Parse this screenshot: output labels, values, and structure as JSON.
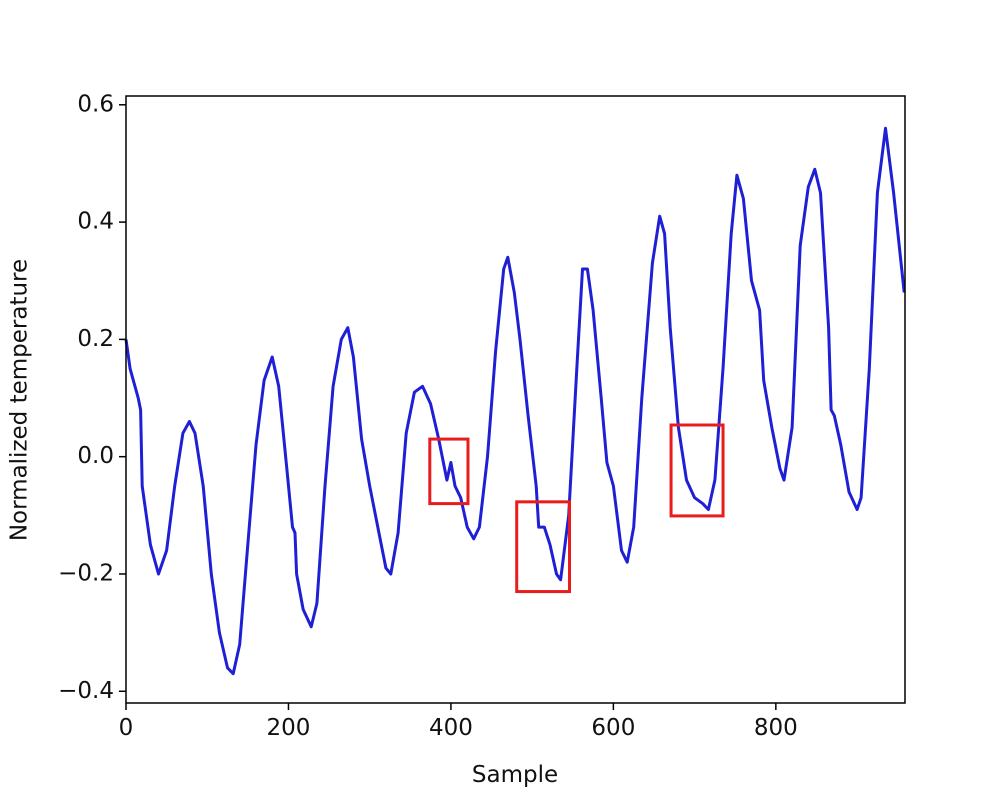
{
  "chart_data": {
    "type": "line",
    "xlabel": "Sample",
    "ylabel": "Normalized temperature",
    "xlim": [
      0,
      959
    ],
    "xticks": [
      0,
      200,
      400,
      600,
      800
    ],
    "ylim": [
      -0.42,
      0.615
    ],
    "yticks": [
      {
        "value": -0.4,
        "label": "−0.4"
      },
      {
        "value": -0.2,
        "label": "−0.2"
      },
      {
        "value": 0.0,
        "label": "0.0"
      },
      {
        "value": 0.2,
        "label": "0.2"
      },
      {
        "value": 0.4,
        "label": "0.4"
      },
      {
        "value": 0.6,
        "label": "0.6"
      }
    ],
    "grid": false,
    "series": [
      {
        "color": "#1f1fd6",
        "x": [
          0,
          5,
          15,
          18,
          20,
          30,
          40,
          50,
          60,
          70,
          78,
          85,
          95,
          105,
          115,
          125,
          132,
          140,
          150,
          160,
          170,
          180,
          188,
          198,
          205,
          208,
          210,
          218,
          228,
          235,
          245,
          255,
          265,
          273,
          280,
          290,
          300,
          310,
          320,
          326,
          335,
          345,
          355,
          365,
          375,
          385,
          395,
          400,
          405,
          412,
          420,
          428,
          435,
          445,
          455,
          465,
          470,
          478,
          485,
          495,
          505,
          508,
          515,
          522,
          530,
          535,
          545,
          555,
          562,
          568,
          575,
          585,
          592,
          600,
          610,
          617,
          625,
          635,
          648,
          657,
          663,
          670,
          680,
          690,
          700,
          710,
          717,
          725,
          735,
          745,
          752,
          760,
          770,
          780,
          785,
          795,
          805,
          810,
          820,
          830,
          840,
          848,
          855,
          865,
          868,
          872,
          880,
          890,
          900,
          905,
          915,
          925,
          935,
          945,
          958
        ],
        "values": [
          0.2,
          0.15,
          0.1,
          0.08,
          -0.05,
          -0.15,
          -0.2,
          -0.16,
          -0.05,
          0.04,
          0.06,
          0.04,
          -0.05,
          -0.2,
          -0.3,
          -0.36,
          -0.37,
          -0.32,
          -0.15,
          0.02,
          0.13,
          0.17,
          0.12,
          -0.02,
          -0.12,
          -0.13,
          -0.2,
          -0.26,
          -0.29,
          -0.25,
          -0.05,
          0.12,
          0.2,
          0.22,
          0.17,
          0.03,
          -0.05,
          -0.12,
          -0.19,
          -0.2,
          -0.13,
          0.04,
          0.11,
          0.12,
          0.09,
          0.03,
          -0.04,
          -0.01,
          -0.05,
          -0.07,
          -0.12,
          -0.14,
          -0.12,
          0.0,
          0.18,
          0.32,
          0.34,
          0.28,
          0.2,
          0.07,
          -0.05,
          -0.12,
          -0.12,
          -0.15,
          -0.2,
          -0.21,
          -0.1,
          0.15,
          0.32,
          0.32,
          0.25,
          0.1,
          -0.01,
          -0.05,
          -0.16,
          -0.18,
          -0.12,
          0.1,
          0.33,
          0.41,
          0.38,
          0.22,
          0.05,
          -0.04,
          -0.07,
          -0.08,
          -0.09,
          -0.04,
          0.15,
          0.38,
          0.48,
          0.44,
          0.3,
          0.25,
          0.13,
          0.05,
          -0.02,
          -0.04,
          0.05,
          0.36,
          0.46,
          0.49,
          0.45,
          0.22,
          0.08,
          0.07,
          0.02,
          -0.06,
          -0.09,
          -0.07,
          0.15,
          0.45,
          0.56,
          0.45,
          0.28
        ]
      }
    ],
    "boxes": [
      {
        "xlim": [
          374,
          421
        ],
        "ylim": [
          -0.08,
          0.03
        ],
        "color": "#e81c1c"
      },
      {
        "xlim": [
          481,
          546
        ],
        "ylim": [
          -0.23,
          -0.077
        ],
        "color": "#e81c1c"
      },
      {
        "xlim": [
          671,
          735
        ],
        "ylim": [
          -0.101,
          0.054
        ],
        "color": "#e81c1c"
      }
    ]
  }
}
